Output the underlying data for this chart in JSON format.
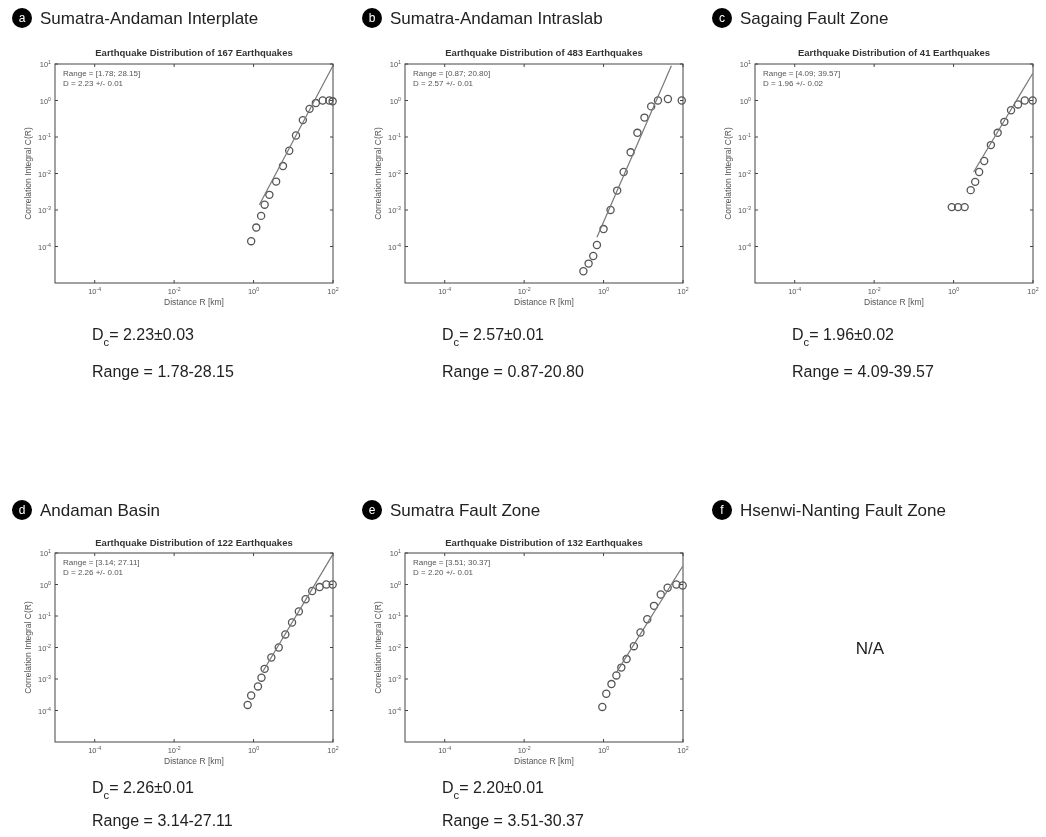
{
  "chart_data": [
    {
      "type": "scatter",
      "title": "Sumatra-Andaman Interplate",
      "subtitle": "Earthquake Distribution of 167 Earthquakes",
      "xlabel": "Distance R [km]",
      "ylabel": "Correlation Integral C(R)",
      "log": "xy",
      "xlim": [
        1e-05,
        100
      ],
      "ylim": [
        1e-05,
        10
      ],
      "xticks": [
        {
          "value": 0.0001,
          "label": "10$^{-4}$"
        },
        {
          "value": 0.01,
          "label": "10$^{-2}$"
        },
        {
          "value": 1,
          "label": "10$^{0}$"
        },
        {
          "value": 100,
          "label": "10$^{2}$"
        }
      ],
      "yticks": [
        {
          "value": 0.0001,
          "label": "10$^{-4}$"
        },
        {
          "value": 0.001,
          "label": "10$^{-3}$"
        },
        {
          "value": 0.01,
          "label": "10$^{-2}$"
        },
        {
          "value": 0.1,
          "label": "10$^{-1}$"
        },
        {
          "value": 1,
          "label": "10$^{0}$"
        },
        {
          "value": 10,
          "label": "10$^{1}$"
        }
      ],
      "series": [
        {
          "type": "scatter",
          "marker": "circle",
          "color": "#555555",
          "x": [
            0.87,
            1.17,
            1.55,
            1.9,
            2.5,
            3.7,
            5.5,
            7.9,
            11.7,
            17.4,
            25.7,
            37,
            55,
            81,
            98
          ],
          "values": [
            0.00014,
            0.00033,
            0.00069,
            0.0014,
            0.0026,
            0.006,
            0.016,
            0.042,
            0.11,
            0.29,
            0.59,
            0.85,
            1,
            1,
            0.95
          ]
        },
        {
          "type": "line",
          "color": "#777777",
          "x": [
            1.4,
            98
          ],
          "values": [
            0.0014,
            8.7
          ]
        }
      ],
      "annotations": [
        "a",
        "Range = [1.78; 28.15]",
        "D =  2.23  +/- 0.01",
        "D$_{c}$= 2.23±0.03",
        "Range = 1.78-28.15"
      ]
    },
    {
      "type": "scatter",
      "title": "Sumatra-Andaman Intraslab",
      "subtitle": "Earthquake Distribution of 483 Earthquakes",
      "xlabel": "Distance R [km]",
      "ylabel": "Correlation Integral C(R)",
      "log": "xy",
      "xlim": [
        1e-05,
        100
      ],
      "ylim": [
        1e-05,
        10
      ],
      "xticks": [
        {
          "value": 0.0001,
          "label": "10$^{-4}$"
        },
        {
          "value": 0.01,
          "label": "10$^{-2}$"
        },
        {
          "value": 1,
          "label": "10$^{0}$"
        },
        {
          "value": 100,
          "label": "10$^{2}$"
        }
      ],
      "yticks": [
        {
          "value": 0.0001,
          "label": "10$^{-4}$"
        },
        {
          "value": 0.001,
          "label": "10$^{-3}$"
        },
        {
          "value": 0.01,
          "label": "10$^{-2}$"
        },
        {
          "value": 0.1,
          "label": "10$^{-1}$"
        },
        {
          "value": 1,
          "label": "10$^{0}$"
        },
        {
          "value": 10,
          "label": "10$^{1}$"
        }
      ],
      "series": [
        {
          "type": "scatter",
          "marker": "circle",
          "color": "#555555",
          "x": [
            0.31,
            0.42,
            0.55,
            0.68,
            1,
            1.5,
            2.2,
            3.2,
            4.8,
            7.1,
            10.7,
            15.8,
            23.4,
            41.7,
            93
          ],
          "values": [
            2.1e-05,
            3.4e-05,
            5.5e-05,
            0.00011,
            0.0003,
            0.001,
            0.0034,
            0.011,
            0.038,
            0.13,
            0.34,
            0.69,
            1,
            1.1,
            1
          ]
        },
        {
          "type": "line",
          "color": "#777777",
          "x": [
            0.68,
            51
          ],
          "values": [
            0.00018,
            8.9
          ]
        }
      ],
      "annotations": [
        "b",
        "Range = [0.87; 20.80]",
        "D =  2.57  +/- 0.01",
        "D$_{c}$= 2.57±0.01",
        "Range = 0.87-20.80"
      ]
    },
    {
      "type": "scatter",
      "title": "Sagaing Fault Zone",
      "subtitle": "Earthquake Distribution of 41 Earthquakes",
      "xlabel": "Distance R [km]",
      "ylabel": "Correlation Integral C(R)",
      "log": "xy",
      "xlim": [
        1e-05,
        100
      ],
      "ylim": [
        1e-05,
        10
      ],
      "xticks": [
        {
          "value": 0.0001,
          "label": "10$^{-4}$"
        },
        {
          "value": 0.01,
          "label": "10$^{-2}$"
        },
        {
          "value": 1,
          "label": "10$^{0}$"
        },
        {
          "value": 100,
          "label": "10$^{2}$"
        }
      ],
      "yticks": [
        {
          "value": 0.0001,
          "label": "10$^{-4}$"
        },
        {
          "value": 0.001,
          "label": "10$^{-3}$"
        },
        {
          "value": 0.01,
          "label": "10$^{-2}$"
        },
        {
          "value": 0.1,
          "label": "10$^{-1}$"
        },
        {
          "value": 1,
          "label": "10$^{0}$"
        },
        {
          "value": 10,
          "label": "10$^{1}$"
        }
      ],
      "series": [
        {
          "type": "scatter",
          "marker": "circle",
          "color": "#555555",
          "x": [
            0.9,
            1.3,
            1.9,
            2.7,
            3.5,
            4.4,
            5.9,
            8.7,
            12.9,
            19,
            28,
            42,
            62,
            98
          ],
          "values": [
            0.0012,
            0.0012,
            0.0012,
            0.0035,
            0.0059,
            0.011,
            0.022,
            0.06,
            0.13,
            0.26,
            0.54,
            0.78,
            1,
            1
          ]
        },
        {
          "type": "line",
          "color": "#777777",
          "x": [
            3.2,
            98
          ],
          "values": [
            0.011,
            5.5
          ]
        }
      ],
      "annotations": [
        "c",
        "Range = [4.09; 39.57]",
        "D =  1.96  +/- 0.02",
        "D$_{c}$= 1.96±0.02",
        "Range = 4.09-39.57"
      ]
    },
    {
      "type": "scatter",
      "title": "Andaman Basin",
      "subtitle": "Earthquake Distribution of 122 Earthquakes",
      "xlabel": "Distance R [km]",
      "ylabel": "Correlation Integral C(R)",
      "log": "xy",
      "xlim": [
        1e-05,
        100
      ],
      "ylim": [
        1e-05,
        10
      ],
      "xticks": [
        {
          "value": 0.0001,
          "label": "10$^{-4}$"
        },
        {
          "value": 0.01,
          "label": "10$^{-2}$"
        },
        {
          "value": 1,
          "label": "10$^{0}$"
        },
        {
          "value": 100,
          "label": "10$^{2}$"
        }
      ],
      "yticks": [
        {
          "value": 0.0001,
          "label": "10$^{-4}$"
        },
        {
          "value": 0.001,
          "label": "10$^{-3}$"
        },
        {
          "value": 0.01,
          "label": "10$^{-2}$"
        },
        {
          "value": 0.1,
          "label": "10$^{-1}$"
        },
        {
          "value": 1,
          "label": "10$^{0}$"
        },
        {
          "value": 10,
          "label": "10$^{1}$"
        }
      ],
      "series": [
        {
          "type": "scatter",
          "marker": "circle",
          "color": "#555555",
          "x": [
            0.71,
            0.87,
            1.29,
            1.58,
            1.9,
            2.8,
            4.3,
            6.3,
            9.3,
            13.8,
            20.4,
            30,
            46,
            68,
            98
          ],
          "values": [
            0.00015,
            0.0003,
            0.00058,
            0.0011,
            0.0021,
            0.0048,
            0.01,
            0.026,
            0.062,
            0.14,
            0.34,
            0.62,
            0.83,
            1,
            1
          ]
        },
        {
          "type": "line",
          "color": "#777777",
          "x": [
            1.74,
            98
          ],
          "values": [
            0.0018,
            8.9
          ]
        }
      ],
      "annotations": [
        "d",
        "Range = [3.14; 27.11]",
        "D =  2.26  +/- 0.01",
        "D$_{c}$= 2.26±0.01",
        "Range = 3.14-27.11"
      ]
    },
    {
      "type": "scatter",
      "title": "Sumatra Fault Zone",
      "subtitle": "Earthquake Distribution of 132 Earthquakes",
      "xlabel": "Distance R [km]",
      "ylabel": "Correlation Integral C(R)",
      "log": "xy",
      "xlim": [
        1e-05,
        100
      ],
      "ylim": [
        1e-05,
        10
      ],
      "xticks": [
        {
          "value": 0.0001,
          "label": "10$^{-4}$"
        },
        {
          "value": 0.01,
          "label": "10$^{-2}$"
        },
        {
          "value": 1,
          "label": "10$^{0}$"
        },
        {
          "value": 100,
          "label": "10$^{2}$"
        }
      ],
      "yticks": [
        {
          "value": 0.0001,
          "label": "10$^{-4}$"
        },
        {
          "value": 0.001,
          "label": "10$^{-3}$"
        },
        {
          "value": 0.01,
          "label": "10$^{-2}$"
        },
        {
          "value": 0.1,
          "label": "10$^{-1}$"
        },
        {
          "value": 1,
          "label": "10$^{0}$"
        },
        {
          "value": 10,
          "label": "10$^{1}$"
        }
      ],
      "series": [
        {
          "type": "scatter",
          "marker": "circle",
          "color": "#555555",
          "x": [
            0.93,
            1.17,
            1.58,
            2.1,
            2.8,
            3.8,
            5.8,
            8.5,
            12.6,
            18.6,
            27.5,
            41,
            68,
            98
          ],
          "values": [
            0.00013,
            0.00034,
            0.00069,
            0.0013,
            0.0023,
            0.0043,
            0.011,
            0.03,
            0.079,
            0.21,
            0.48,
            0.79,
            1,
            0.93
          ]
        },
        {
          "type": "line",
          "color": "#777777",
          "x": [
            2.1,
            98
          ],
          "values": [
            0.0016,
            3.8
          ]
        }
      ],
      "annotations": [
        "e",
        "Range = [3.51; 30.37]",
        "D =  2.20  +/- 0.01",
        "D$_{c}$= 2.20±0.01",
        "Range = 3.51-30.37"
      ]
    },
    {
      "type": "other",
      "title": "Hsenwi-Nanting Fault Zone",
      "annotations": [
        "f",
        "N/A"
      ]
    }
  ]
}
